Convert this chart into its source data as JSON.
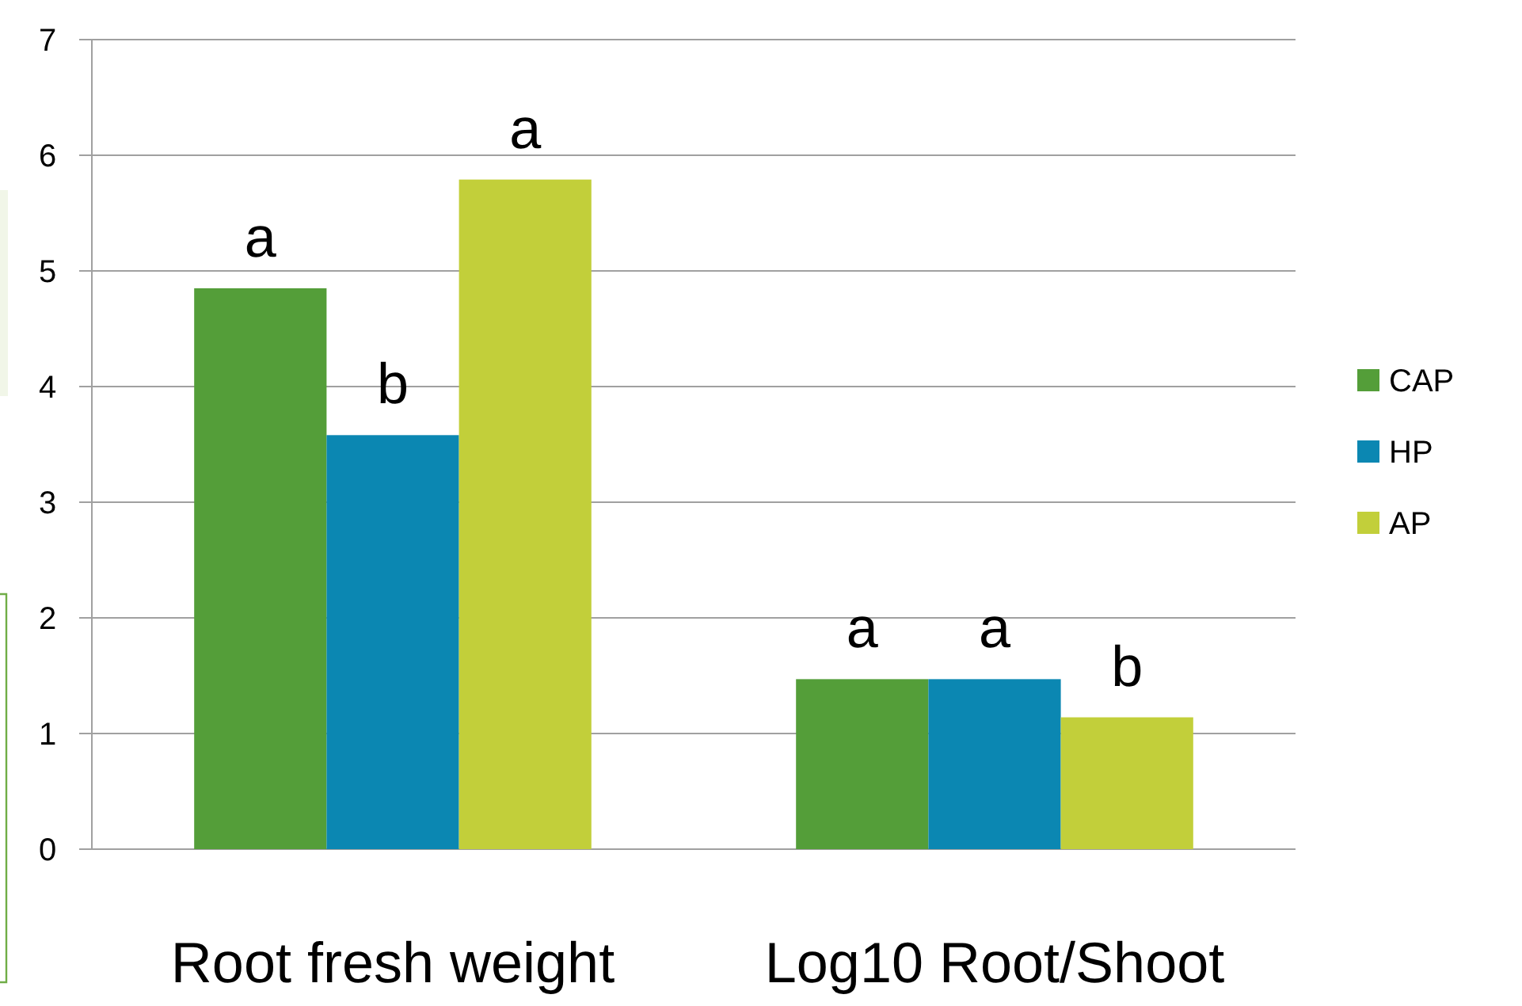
{
  "chart_data": {
    "type": "bar",
    "categories": [
      "Root fresh weight",
      "Log10 Root/Shoot"
    ],
    "series": [
      {
        "name": "CAP",
        "color": "#549e39",
        "values": [
          4.85,
          1.47
        ],
        "value_labels": [
          "a",
          "a"
        ]
      },
      {
        "name": "HP",
        "color": "#0b87b2",
        "values": [
          3.58,
          1.47
        ],
        "value_labels": [
          "b",
          "a"
        ]
      },
      {
        "name": "AP",
        "color": "#c2cf3a",
        "values": [
          5.79,
          1.14
        ],
        "value_labels": [
          "a",
          "b"
        ]
      }
    ],
    "ylim": [
      0,
      7
    ],
    "yticks": [
      0,
      1,
      2,
      3,
      4,
      5,
      6,
      7
    ],
    "grid": "y",
    "legend": "right"
  }
}
